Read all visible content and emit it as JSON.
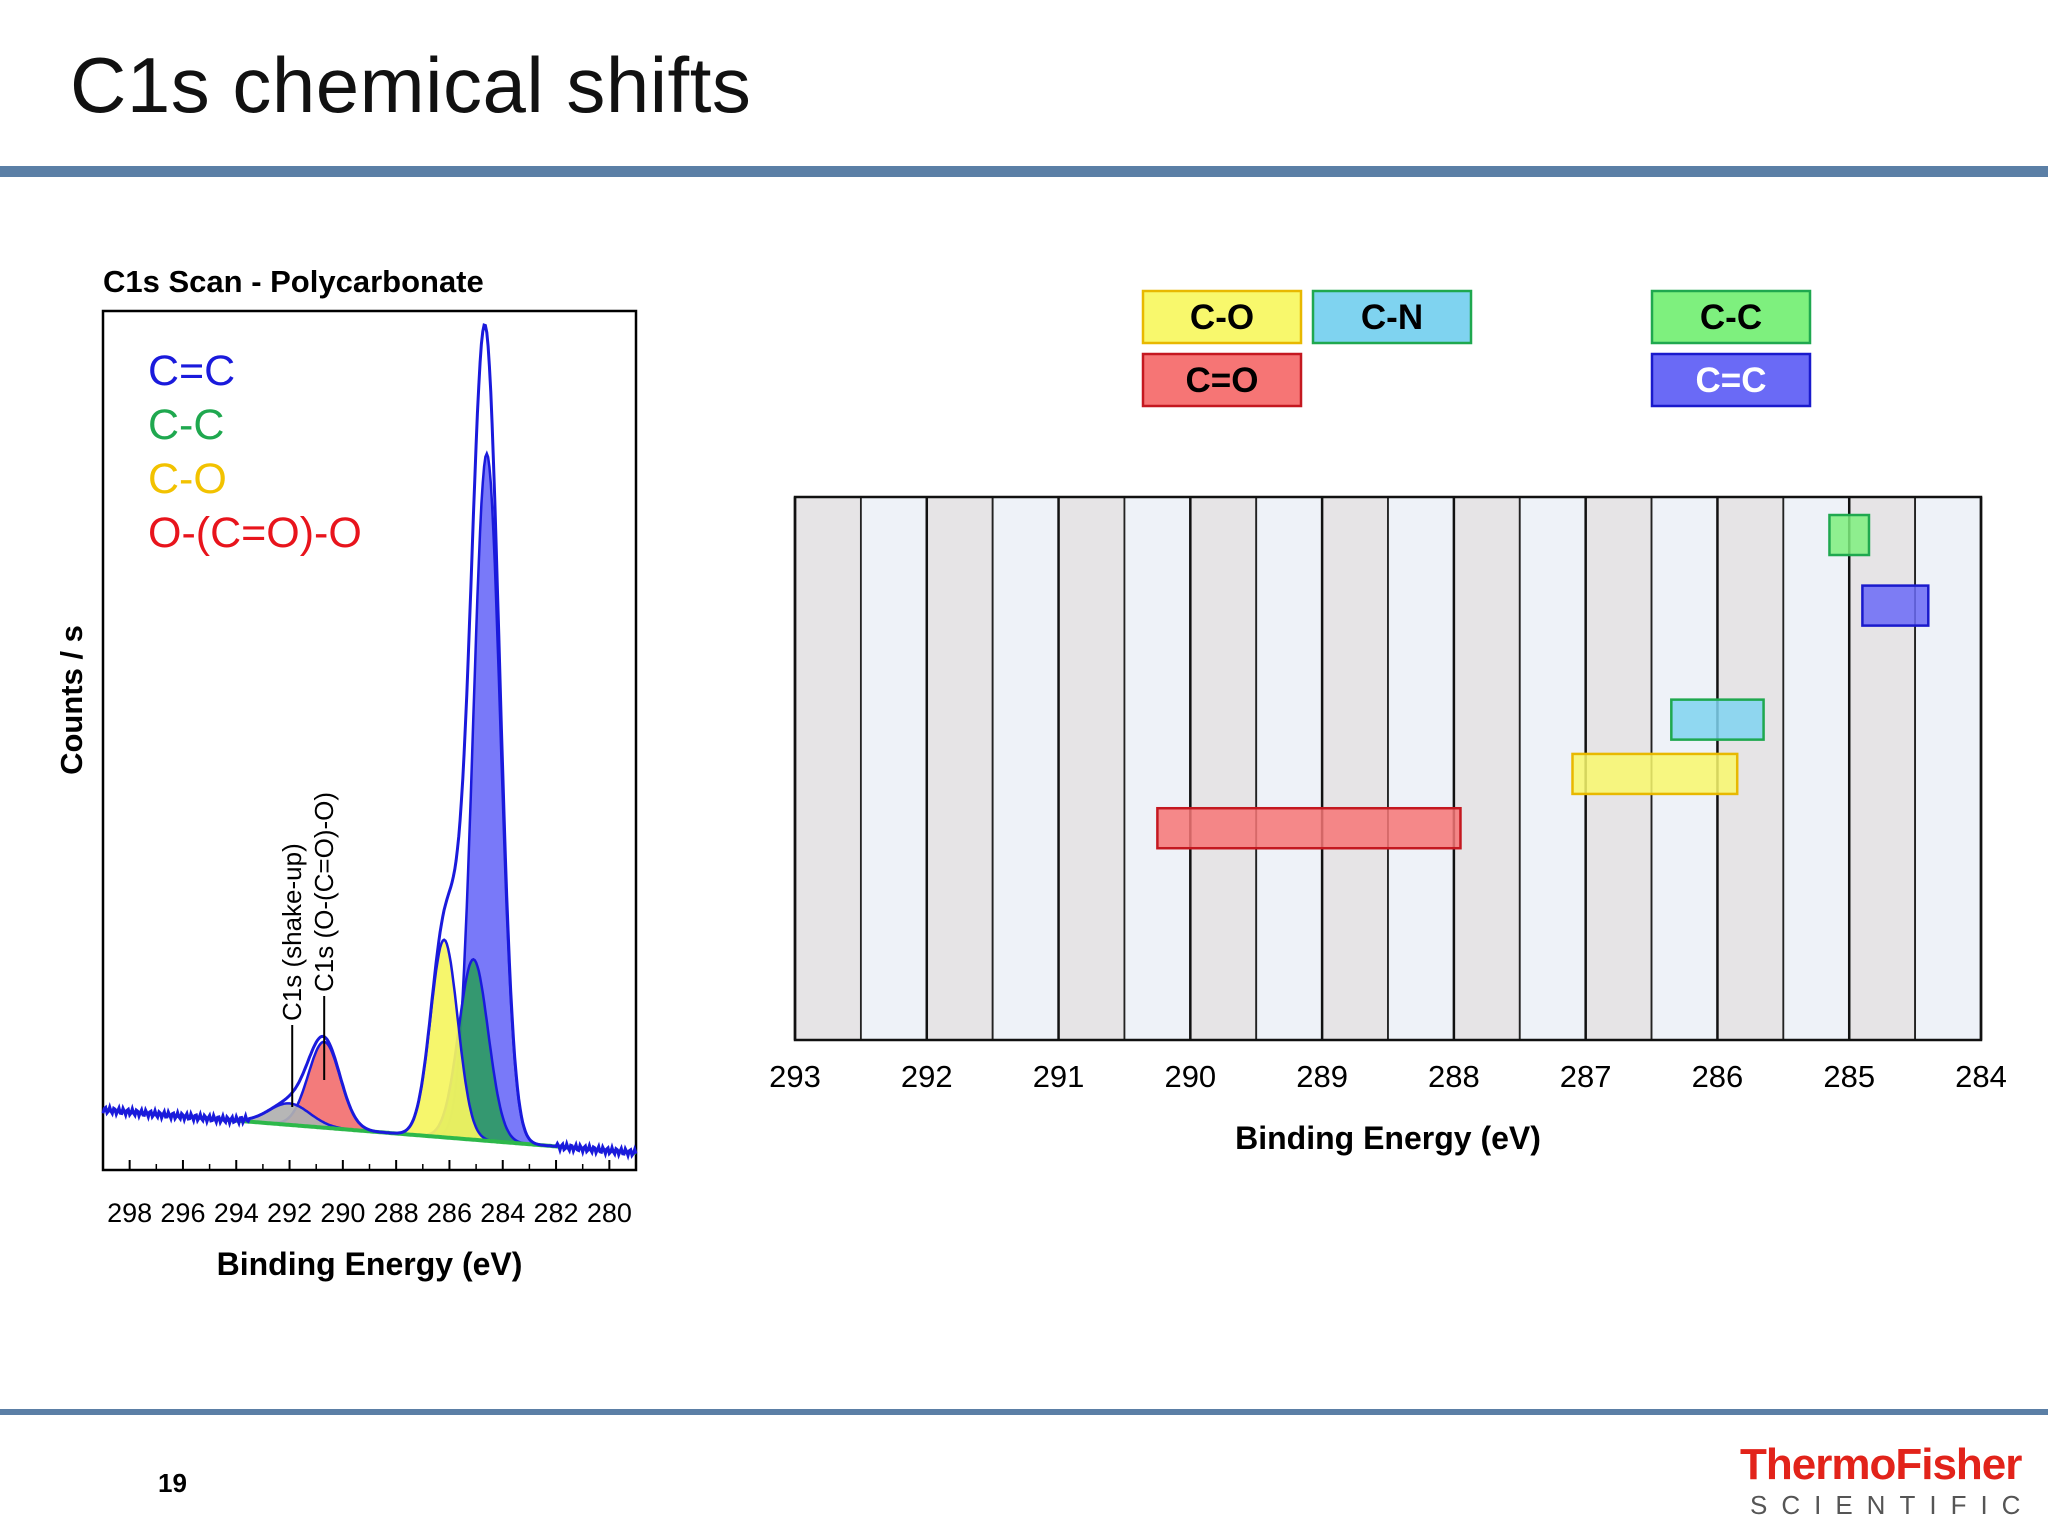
{
  "slide": {
    "title": "C1s chemical shifts",
    "page_number": "19",
    "logo_main": "ThermoFisher",
    "logo_sub": "SCIENTIFIC",
    "rule_color": "#5b7fa6"
  },
  "chart_data": [
    {
      "type": "area",
      "title": "C1s Scan - Polycarbonate",
      "xlabel": "Binding Energy (eV)",
      "ylabel": "Counts / s",
      "xlim": [
        299,
        279
      ],
      "x_ticks": [
        298,
        296,
        294,
        292,
        290,
        288,
        286,
        284,
        282,
        280
      ],
      "legend": [
        {
          "label": "C=C",
          "color": "#1a1adc"
        },
        {
          "label": "C-C",
          "color": "#1fa84f"
        },
        {
          "label": "C-O",
          "color": "#f2c200"
        },
        {
          "label": "O-(C=O)-O",
          "color": "#e8141c"
        }
      ],
      "annotations": [
        {
          "text": "C1s (shake-up)",
          "x": 291.9
        },
        {
          "text": "C1s (O-(C=O)-O)",
          "x": 290.7
        }
      ],
      "series": [
        {
          "name": "C=C",
          "center": 284.6,
          "height": 0.8,
          "fwhm": 1.2,
          "fill": "#6e6ef8",
          "stroke": "#1a1adc"
        },
        {
          "name": "C-C",
          "center": 285.1,
          "height": 0.21,
          "fwhm": 1.3,
          "fill": "#2f9b64",
          "stroke": "#1a1adc"
        },
        {
          "name": "C-O",
          "center": 286.2,
          "height": 0.23,
          "fwhm": 1.2,
          "fill": "#f5f560",
          "stroke": "#1a1adc"
        },
        {
          "name": "O-(C=O)-O",
          "center": 290.7,
          "height": 0.1,
          "fwhm": 1.4,
          "fill": "#f27070",
          "stroke": "#1a1adc"
        },
        {
          "name": "C1s (shake-up)",
          "center": 292.0,
          "height": 0.025,
          "fwhm": 1.8,
          "fill": "#b0b0b0",
          "stroke": "#1a1adc"
        }
      ],
      "background": {
        "left": 0.07,
        "right": 0.02,
        "color": "#2db84a"
      }
    },
    {
      "type": "range",
      "xlabel": "Binding Energy (eV)",
      "xlim": [
        293,
        284
      ],
      "x_ticks": [
        293,
        292,
        291,
        290,
        289,
        288,
        287,
        286,
        285,
        284
      ],
      "legend": [
        {
          "label": "C-O",
          "color": "#f8f86c",
          "border": "#e8b800",
          "row": 0,
          "col": 0
        },
        {
          "label": "C-N",
          "color": "#7fd3f0",
          "border": "#1fa84f",
          "row": 0,
          "col": 1
        },
        {
          "label": "C=O",
          "color": "#f67575",
          "border": "#c41820",
          "row": 1,
          "col": 0
        },
        {
          "label": "C-C",
          "color": "#7ef07e",
          "border": "#1fa84f",
          "row": 0,
          "col": 3
        },
        {
          "label": "C=C",
          "color": "#6a6af6",
          "border": "#1a1acc",
          "row": 1,
          "col": 3
        }
      ],
      "ranges": [
        {
          "label": "C-C",
          "from": 285.15,
          "to": 284.85,
          "level": 0.93,
          "color": "#7ef07e",
          "border": "#1fa84f"
        },
        {
          "label": "C=C",
          "from": 284.9,
          "to": 284.4,
          "level": 0.8,
          "color": "#6a6af6",
          "border": "#1a1acc"
        },
        {
          "label": "C-N",
          "from": 286.35,
          "to": 285.65,
          "level": 0.59,
          "color": "#7fd3f0",
          "border": "#1fa84f"
        },
        {
          "label": "C-O",
          "from": 287.1,
          "to": 285.85,
          "level": 0.49,
          "color": "#f8f86c",
          "border": "#e8b800"
        },
        {
          "label": "C=O",
          "from": 290.25,
          "to": 287.95,
          "level": 0.39,
          "color": "#f67575",
          "border": "#c41820"
        }
      ],
      "band_colors": [
        "#e6e4e6",
        "#eef2f8"
      ]
    }
  ]
}
